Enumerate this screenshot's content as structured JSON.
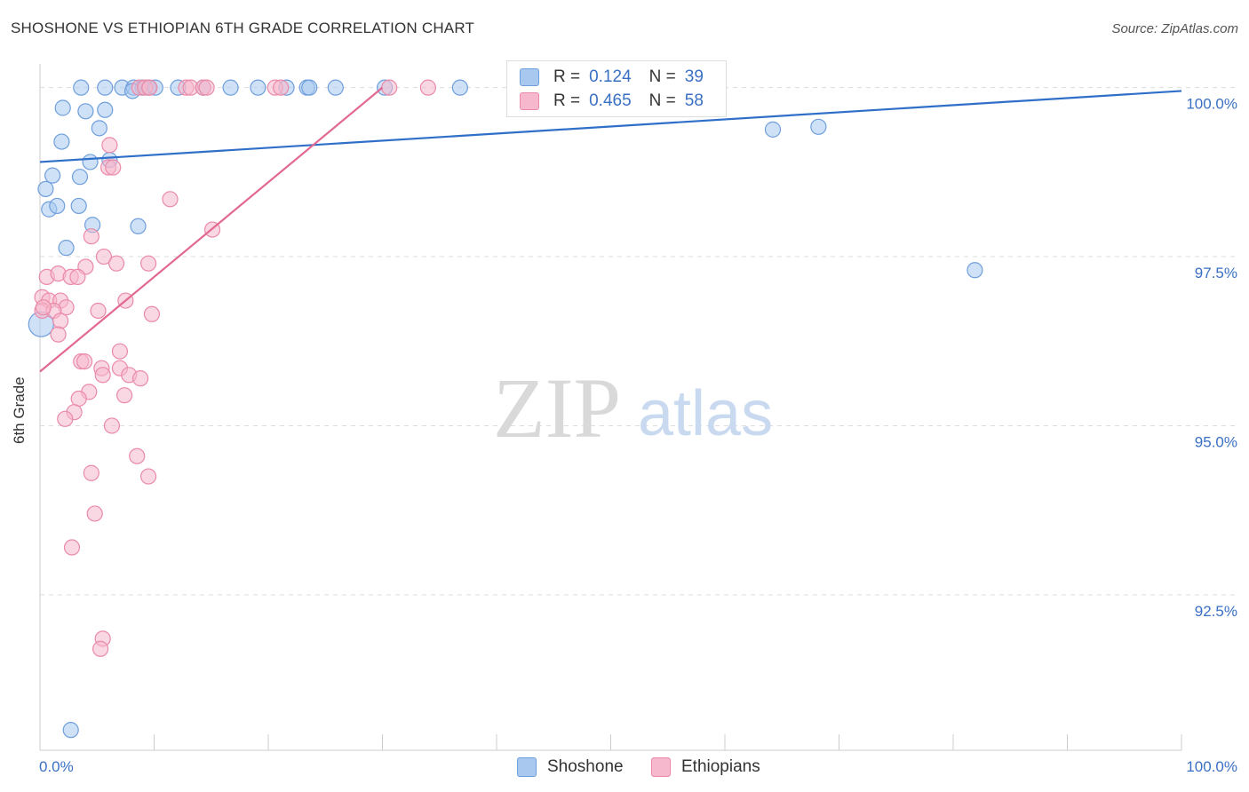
{
  "title": "SHOSHONE VS ETHIOPIAN 6TH GRADE CORRELATION CHART",
  "source": "Source: ZipAtlas.com",
  "watermark": {
    "zip": "ZIP",
    "atlas": "atlas"
  },
  "colors": {
    "shoshone_fill": "#a8c8f0",
    "shoshone_stroke": "#6f9fdc",
    "shoshone_line": "#2f6fc8",
    "ethiopian_fill": "#f6b8cc",
    "ethiopian_stroke": "#ea8aa8",
    "ethiopian_line": "#e2698f",
    "tick_label": "#3a70c4",
    "grid": "#dddddd"
  },
  "legend": {
    "r_key": "R =",
    "n_key": "N =",
    "shoshone": {
      "r": "0.124",
      "n": "39"
    },
    "ethiopians": {
      "r": "0.465",
      "n": "58"
    }
  },
  "bottom_legend": {
    "shoshone": "Shoshone",
    "ethiopians": "Ethiopians"
  },
  "chart_data": {
    "type": "scatter",
    "title": "SHOSHONE VS ETHIOPIAN 6TH GRADE CORRELATION CHART",
    "xlabel": "",
    "ylabel": "6th Grade",
    "xlim": [
      0,
      100
    ],
    "ylim": [
      90.2,
      100.35
    ],
    "x_tick_labels": [
      "0.0%",
      "100.0%"
    ],
    "y_ticks": [
      {
        "value": 100.0,
        "label": "100.0%"
      },
      {
        "value": 97.5,
        "label": "97.5%"
      },
      {
        "value": 95.0,
        "label": "95.0%"
      },
      {
        "value": 92.5,
        "label": "92.5%"
      }
    ],
    "grid": true,
    "series": [
      {
        "name": "Shoshone",
        "r": 0.124,
        "n": 39,
        "trend": {
          "x": [
            0,
            100
          ],
          "y": [
            98.9,
            99.95
          ]
        },
        "points": [
          [
            3.6,
            100.0
          ],
          [
            5.7,
            100.0
          ],
          [
            7.2,
            100.0
          ],
          [
            8.2,
            100.0
          ],
          [
            9.0,
            100.0
          ],
          [
            9.5,
            100.0
          ],
          [
            10.1,
            100.0
          ],
          [
            12.1,
            100.0
          ],
          [
            14.3,
            100.0
          ],
          [
            16.7,
            100.0
          ],
          [
            19.1,
            100.0
          ],
          [
            21.6,
            100.0
          ],
          [
            23.4,
            100.0
          ],
          [
            25.9,
            100.0
          ],
          [
            30.2,
            100.0
          ],
          [
            36.8,
            100.0
          ],
          [
            8.1,
            99.95
          ],
          [
            23.6,
            100.0
          ],
          [
            2.0,
            99.7
          ],
          [
            4.0,
            99.65
          ],
          [
            5.7,
            99.67
          ],
          [
            5.2,
            99.4
          ],
          [
            1.9,
            99.2
          ],
          [
            4.4,
            98.9
          ],
          [
            6.1,
            98.93
          ],
          [
            1.1,
            98.7
          ],
          [
            3.5,
            98.68
          ],
          [
            0.5,
            98.5
          ],
          [
            0.8,
            98.2
          ],
          [
            1.5,
            98.25
          ],
          [
            3.4,
            98.25
          ],
          [
            4.6,
            97.97
          ],
          [
            8.6,
            97.95
          ],
          [
            2.3,
            97.63
          ],
          [
            64.2,
            99.38
          ],
          [
            68.2,
            99.42
          ],
          [
            81.9,
            97.3
          ],
          [
            0.1,
            96.5
          ],
          [
            2.7,
            90.5
          ]
        ]
      },
      {
        "name": "Ethiopians",
        "r": 0.465,
        "n": 58,
        "trend": {
          "x": [
            0,
            30
          ],
          "y": [
            95.8,
            100.0
          ]
        },
        "points": [
          [
            8.7,
            100.0
          ],
          [
            9.2,
            100.0
          ],
          [
            9.6,
            100.0
          ],
          [
            12.8,
            100.0
          ],
          [
            13.2,
            100.0
          ],
          [
            14.3,
            100.0
          ],
          [
            14.6,
            100.0
          ],
          [
            20.6,
            100.0
          ],
          [
            21.1,
            100.0
          ],
          [
            30.6,
            100.0
          ],
          [
            34.0,
            100.0
          ],
          [
            6.1,
            99.15
          ],
          [
            6.0,
            98.82
          ],
          [
            6.4,
            98.82
          ],
          [
            11.4,
            98.35
          ],
          [
            15.1,
            97.9
          ],
          [
            4.5,
            97.8
          ],
          [
            5.6,
            97.5
          ],
          [
            6.7,
            97.4
          ],
          [
            9.5,
            97.4
          ],
          [
            4.0,
            97.35
          ],
          [
            0.6,
            97.2
          ],
          [
            1.6,
            97.25
          ],
          [
            2.7,
            97.2
          ],
          [
            3.3,
            97.2
          ],
          [
            0.2,
            96.9
          ],
          [
            0.8,
            96.85
          ],
          [
            1.8,
            96.85
          ],
          [
            2.3,
            96.75
          ],
          [
            0.2,
            96.7
          ],
          [
            1.2,
            96.7
          ],
          [
            7.5,
            96.85
          ],
          [
            5.1,
            96.7
          ],
          [
            9.8,
            96.65
          ],
          [
            1.8,
            96.55
          ],
          [
            1.6,
            96.35
          ],
          [
            7.0,
            96.1
          ],
          [
            3.6,
            95.95
          ],
          [
            3.9,
            95.95
          ],
          [
            5.4,
            95.85
          ],
          [
            7.0,
            95.85
          ],
          [
            5.5,
            95.75
          ],
          [
            7.8,
            95.75
          ],
          [
            8.8,
            95.7
          ],
          [
            4.3,
            95.5
          ],
          [
            3.4,
            95.4
          ],
          [
            7.4,
            95.45
          ],
          [
            3.0,
            95.2
          ],
          [
            2.2,
            95.1
          ],
          [
            6.3,
            95.0
          ],
          [
            8.5,
            94.55
          ],
          [
            4.5,
            94.3
          ],
          [
            9.5,
            94.25
          ],
          [
            4.8,
            93.7
          ],
          [
            2.8,
            93.2
          ],
          [
            5.5,
            91.85
          ],
          [
            5.3,
            91.7
          ],
          [
            0.3,
            96.75
          ]
        ]
      }
    ]
  }
}
